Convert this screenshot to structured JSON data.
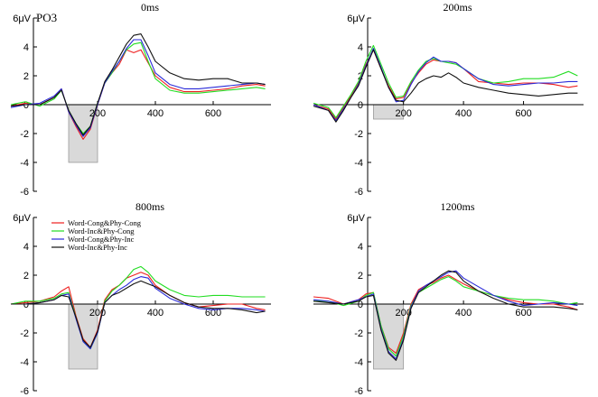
{
  "chart_data": {
    "type": "line",
    "channel": "PO3",
    "y_unit_label": "6μV",
    "ylim": [
      -6,
      6
    ],
    "y_ticks": [
      4,
      2,
      0,
      -2,
      -4,
      -6
    ],
    "xlim": [
      -100,
      800
    ],
    "x_ticks": [
      200,
      400,
      600
    ],
    "legend": {
      "panel": 3,
      "placement": "top-left"
    },
    "series_meta": [
      {
        "name": "Word-Cong&Phy-Cong",
        "color": "#ee1f1f"
      },
      {
        "name": "Word-Inc&Phy-Cong",
        "color": "#22dd22"
      },
      {
        "name": "Word-Cong&Phy-Inc",
        "color": "#2a2ad8"
      },
      {
        "name": "Word-Inc&Phy-Inc",
        "color": "#111111"
      }
    ],
    "panels": [
      {
        "title": "0ms",
        "shade": {
          "x": [
            100,
            200
          ],
          "y": [
            -4.0,
            0
          ]
        },
        "x": [
          -100,
          -50,
          0,
          50,
          75,
          100,
          125,
          150,
          175,
          200,
          225,
          250,
          275,
          300,
          325,
          350,
          375,
          400,
          450,
          500,
          550,
          600,
          650,
          700,
          750,
          780
        ],
        "series": [
          [
            -0.1,
            0.1,
            0.0,
            0.5,
            1.1,
            -0.5,
            -1.5,
            -2.4,
            -1.7,
            0.0,
            1.5,
            2.2,
            2.8,
            3.8,
            3.6,
            3.8,
            2.9,
            2.0,
            1.2,
            0.9,
            0.9,
            1.0,
            1.1,
            1.3,
            1.4,
            1.3
          ],
          [
            0.0,
            0.2,
            -0.1,
            0.4,
            1.0,
            -0.4,
            -1.3,
            -2.0,
            -1.5,
            0.1,
            1.5,
            2.2,
            3.0,
            3.8,
            4.2,
            4.3,
            3.0,
            1.8,
            1.0,
            0.8,
            0.8,
            0.9,
            1.0,
            1.1,
            1.2,
            1.1
          ],
          [
            -0.2,
            0.0,
            0.1,
            0.6,
            1.1,
            -0.5,
            -1.4,
            -2.2,
            -1.6,
            0.0,
            1.5,
            2.3,
            3.0,
            3.9,
            4.5,
            4.5,
            3.4,
            2.2,
            1.4,
            1.1,
            1.1,
            1.2,
            1.3,
            1.4,
            1.5,
            1.4
          ],
          [
            -0.1,
            0.0,
            0.0,
            0.5,
            1.0,
            -0.4,
            -1.3,
            -2.1,
            -1.5,
            0.1,
            1.6,
            2.4,
            3.3,
            4.2,
            4.8,
            4.9,
            4.0,
            3.0,
            2.2,
            1.8,
            1.7,
            1.8,
            1.8,
            1.5,
            1.5,
            1.4
          ]
        ]
      },
      {
        "title": "200ms",
        "shade": {
          "x": [
            100,
            200
          ],
          "y": [
            -1.0,
            0
          ]
        },
        "x": [
          -100,
          -50,
          -25,
          0,
          25,
          50,
          75,
          100,
          125,
          150,
          175,
          200,
          225,
          250,
          275,
          300,
          325,
          350,
          375,
          400,
          450,
          500,
          550,
          600,
          650,
          700,
          750,
          780
        ],
        "series": [
          [
            0.0,
            -0.3,
            -1.0,
            -0.2,
            0.6,
            1.5,
            2.8,
            3.8,
            2.5,
            1.3,
            0.4,
            0.5,
            1.5,
            2.2,
            2.8,
            3.1,
            3.0,
            3.0,
            2.9,
            2.5,
            1.6,
            1.5,
            1.4,
            1.5,
            1.5,
            1.4,
            1.2,
            1.3
          ],
          [
            0.1,
            -0.2,
            -0.9,
            -0.1,
            0.7,
            1.6,
            3.0,
            4.1,
            2.8,
            1.5,
            0.5,
            0.6,
            1.6,
            2.4,
            3.0,
            3.2,
            3.0,
            2.9,
            2.8,
            2.5,
            1.8,
            1.5,
            1.6,
            1.8,
            1.8,
            1.9,
            2.3,
            2.0
          ],
          [
            0.0,
            -0.4,
            -1.1,
            -0.3,
            0.5,
            1.4,
            2.7,
            3.9,
            2.6,
            1.2,
            0.2,
            0.3,
            1.4,
            2.3,
            2.9,
            3.3,
            3.0,
            3.0,
            2.9,
            2.5,
            1.8,
            1.4,
            1.3,
            1.4,
            1.5,
            1.5,
            1.6,
            1.6
          ],
          [
            -0.1,
            -0.4,
            -1.2,
            -0.4,
            0.5,
            1.3,
            2.6,
            3.8,
            2.5,
            1.2,
            0.3,
            0.2,
            0.8,
            1.5,
            1.8,
            2.0,
            1.9,
            2.2,
            1.9,
            1.5,
            1.2,
            1.0,
            0.8,
            0.7,
            0.6,
            0.7,
            0.8,
            0.8
          ]
        ]
      },
      {
        "title": "800ms",
        "shade": {
          "x": [
            100,
            200
          ],
          "y": [
            -4.5,
            0
          ]
        },
        "x": [
          -100,
          -50,
          0,
          50,
          75,
          100,
          125,
          150,
          175,
          200,
          225,
          250,
          275,
          300,
          325,
          350,
          375,
          400,
          450,
          500,
          550,
          600,
          650,
          700,
          750,
          780
        ],
        "series": [
          [
            0.0,
            0.1,
            0.2,
            0.5,
            0.9,
            1.2,
            -0.8,
            -2.4,
            -3.0,
            -1.8,
            0.3,
            1.0,
            1.3,
            1.8,
            2.0,
            2.2,
            2.0,
            1.3,
            0.6,
            0.1,
            -0.2,
            -0.1,
            0.0,
            0.0,
            -0.3,
            -0.4
          ],
          [
            0.0,
            0.2,
            0.2,
            0.4,
            0.7,
            0.8,
            -0.9,
            -2.5,
            -3.1,
            -2.0,
            0.2,
            0.9,
            1.3,
            1.8,
            2.4,
            2.6,
            2.2,
            1.6,
            1.0,
            0.6,
            0.5,
            0.6,
            0.6,
            0.5,
            0.5,
            0.5
          ],
          [
            0.0,
            0.0,
            0.1,
            0.3,
            0.6,
            0.7,
            -1.0,
            -2.6,
            -3.1,
            -2.0,
            0.1,
            0.6,
            1.0,
            1.3,
            1.7,
            1.9,
            1.8,
            1.1,
            0.4,
            0.0,
            -0.3,
            -0.4,
            -0.3,
            -0.3,
            -0.4,
            -0.5
          ],
          [
            0.0,
            0.0,
            0.1,
            0.3,
            0.6,
            0.5,
            -0.9,
            -2.5,
            -3.0,
            -1.9,
            0.1,
            0.6,
            0.8,
            1.1,
            1.4,
            1.6,
            1.4,
            1.2,
            0.6,
            0.1,
            -0.2,
            -0.3,
            -0.3,
            -0.4,
            -0.6,
            -0.5
          ]
        ]
      },
      {
        "title": "1200ms",
        "shade": {
          "x": [
            100,
            200
          ],
          "y": [
            -4.5,
            0
          ]
        },
        "x": [
          -100,
          -50,
          0,
          50,
          75,
          100,
          125,
          150,
          175,
          200,
          225,
          250,
          275,
          300,
          325,
          350,
          375,
          400,
          450,
          500,
          550,
          600,
          650,
          700,
          750,
          780
        ],
        "series": [
          [
            0.5,
            0.4,
            0.0,
            0.3,
            0.7,
            0.8,
            -1.5,
            -3.0,
            -3.4,
            -2.0,
            0.0,
            1.0,
            1.3,
            1.5,
            1.8,
            2.0,
            1.7,
            1.4,
            0.9,
            0.6,
            0.3,
            0.1,
            0.0,
            0.0,
            -0.2,
            -0.4
          ],
          [
            0.2,
            0.2,
            -0.1,
            0.2,
            0.6,
            0.8,
            -1.5,
            -3.1,
            -3.6,
            -2.2,
            -0.1,
            0.8,
            1.1,
            1.4,
            1.7,
            1.9,
            1.6,
            1.2,
            0.9,
            0.6,
            0.4,
            0.3,
            0.3,
            0.2,
            0.0,
            0.1
          ],
          [
            0.3,
            0.2,
            0.0,
            0.3,
            0.5,
            0.7,
            -1.7,
            -3.3,
            -3.8,
            -2.4,
            -0.2,
            0.9,
            1.3,
            1.6,
            1.9,
            2.2,
            2.3,
            1.8,
            1.2,
            0.6,
            0.2,
            -0.1,
            0.0,
            0.1,
            0.0,
            -0.1
          ],
          [
            0.2,
            0.1,
            0.0,
            0.2,
            0.5,
            0.6,
            -1.8,
            -3.4,
            -3.9,
            -2.5,
            -0.3,
            0.8,
            1.2,
            1.6,
            2.0,
            2.3,
            2.2,
            1.6,
            0.9,
            0.4,
            0.0,
            -0.2,
            -0.2,
            -0.2,
            -0.3,
            -0.4
          ]
        ]
      }
    ]
  }
}
